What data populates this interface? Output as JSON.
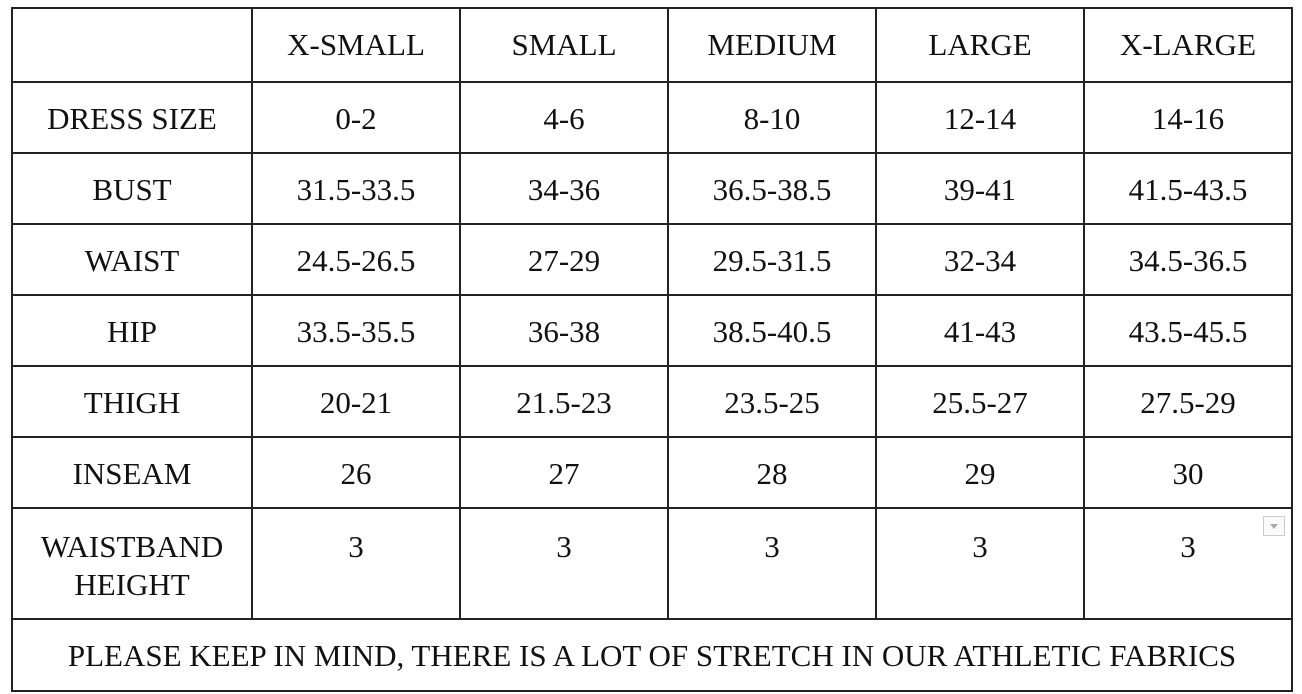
{
  "table": {
    "columns": [
      "X-SMALL",
      "SMALL",
      "MEDIUM",
      "LARGE",
      "X-LARGE"
    ],
    "rows": [
      {
        "label": "DRESS SIZE",
        "cells": [
          "0-2",
          "4-6",
          "8-10",
          "12-14",
          "14-16"
        ]
      },
      {
        "label": "BUST",
        "cells": [
          "31.5-33.5",
          "34-36",
          "36.5-38.5",
          "39-41",
          "41.5-43.5"
        ]
      },
      {
        "label": "WAIST",
        "cells": [
          "24.5-26.5",
          "27-29",
          "29.5-31.5",
          "32-34",
          "34.5-36.5"
        ]
      },
      {
        "label": "HIP",
        "cells": [
          "33.5-35.5",
          "36-38",
          "38.5-40.5",
          "41-43",
          "43.5-45.5"
        ]
      },
      {
        "label": "THIGH",
        "cells": [
          "20-21",
          "21.5-23",
          "23.5-25",
          "25.5-27",
          "27.5-29"
        ]
      },
      {
        "label": "INSEAM",
        "cells": [
          26,
          27,
          28,
          29,
          30
        ]
      },
      {
        "label": "WAISTBAND HEIGHT",
        "cells": [
          3,
          3,
          3,
          3,
          3
        ]
      }
    ],
    "footer": "PLEASE KEEP IN MIND, THERE IS A LOT OF STRETCH IN OUR ATHLETIC FABRICS"
  }
}
